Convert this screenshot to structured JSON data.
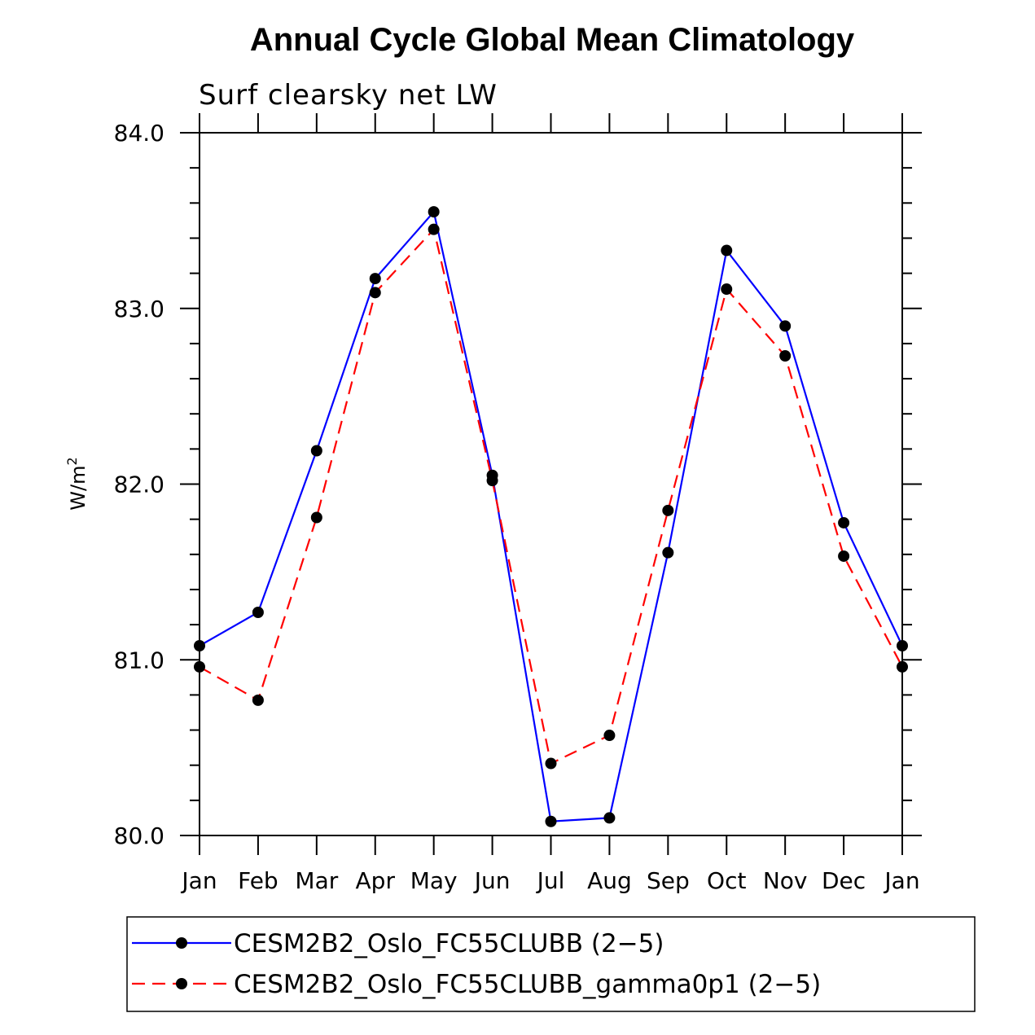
{
  "chart_data": {
    "type": "line",
    "title": "Annual Cycle Global Mean Climatology",
    "subtitle": "Surf clearsky net LW",
    "xlabel": "",
    "ylabel": "W/m",
    "ylabel_superscript": "2",
    "categories": [
      "Jan",
      "Feb",
      "Mar",
      "Apr",
      "May",
      "Jun",
      "Jul",
      "Aug",
      "Sep",
      "Oct",
      "Nov",
      "Dec",
      "Jan"
    ],
    "ylim": [
      80.0,
      84.0
    ],
    "yticks": [
      "80.0",
      "81.0",
      "82.0",
      "83.0",
      "84.0"
    ],
    "grid": false,
    "legend_position": "bottom",
    "series": [
      {
        "name": "CESM2B2_Oslo_FC55CLUBB (2−5)",
        "color": "#0000ff",
        "dash": "solid",
        "values": [
          81.08,
          81.27,
          82.19,
          83.17,
          83.55,
          82.05,
          80.08,
          80.1,
          81.61,
          83.33,
          82.9,
          81.78,
          81.08
        ]
      },
      {
        "name": "CESM2B2_Oslo_FC55CLUBB_gamma0p1 (2−5)",
        "color": "#ff0000",
        "dash": "dashed",
        "values": [
          80.96,
          80.77,
          81.81,
          83.09,
          83.45,
          82.02,
          80.41,
          80.57,
          81.85,
          83.11,
          82.73,
          81.59,
          80.96
        ]
      }
    ]
  }
}
